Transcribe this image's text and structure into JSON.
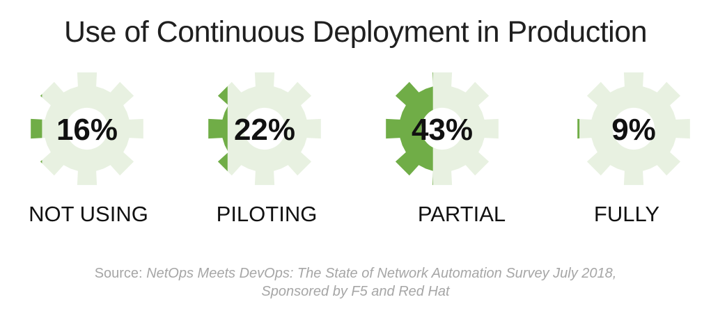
{
  "chart_data": {
    "type": "bar",
    "title": "Use of Continuous Deployment in Production",
    "categories": [
      "NOT USING",
      "PILOTING",
      "PARTIAL",
      "FULLY"
    ],
    "values": [
      16,
      22,
      43,
      9
    ],
    "value_labels": [
      "16%",
      "22%",
      "43%",
      "9%"
    ],
    "ylim": [
      0,
      100
    ],
    "colors": {
      "fill": "#70ad47",
      "empty": "#e8f1e1"
    }
  },
  "source": {
    "prefix": "Source:",
    "line1": "NetOps Meets DevOps: The State of Network Automation  Survey July 2018,",
    "line2": "Sponsored by F5 and Red Hat"
  }
}
